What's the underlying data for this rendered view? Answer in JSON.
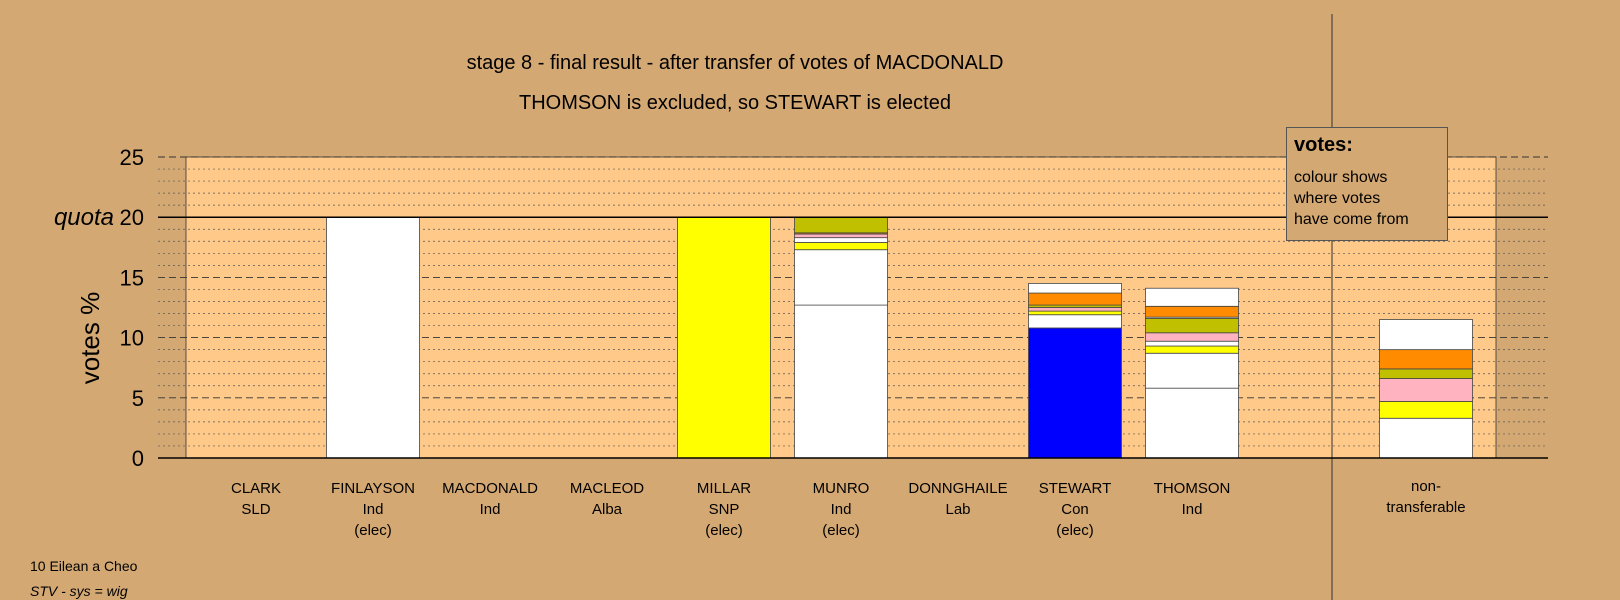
{
  "chart_data": {
    "type": "bar",
    "stacked": true,
    "title": "stage 8 - final result - after transfer of votes of MACDONALD",
    "subtitle": "THOMSON is excluded, so STEWART is elected",
    "ylabel": "votes %",
    "ylim": [
      0,
      25
    ],
    "yticks": [
      "0",
      "5",
      "10",
      "15",
      "20",
      "25"
    ],
    "quota_label": "quota",
    "quota_value": 20,
    "grid": true,
    "legend": {
      "title": "votes:",
      "text": "colour shows where votes have come from"
    },
    "categories": [
      {
        "name": "CLARK",
        "party": "SLD",
        "status": "",
        "segments": []
      },
      {
        "name": "FINLAYSON",
        "party": "Ind",
        "status": "(elec)",
        "segments": [
          {
            "value": 20.0,
            "color": "#ffffff"
          }
        ]
      },
      {
        "name": "MACDONALD",
        "party": "Ind",
        "status": "",
        "segments": []
      },
      {
        "name": "MACLEOD",
        "party": "Alba",
        "status": "",
        "segments": []
      },
      {
        "name": "MILLAR",
        "party": "SNP",
        "status": "(elec)",
        "segments": [
          {
            "value": 20.0,
            "color": "#ffff00"
          }
        ]
      },
      {
        "name": "MUNRO",
        "party": "Ind",
        "status": "(elec)",
        "segments": [
          {
            "value": 12.7,
            "color": "#ffffff"
          },
          {
            "value": 4.6,
            "color": "#ffffff"
          },
          {
            "value": 0.6,
            "color": "#ffff00"
          },
          {
            "value": 0.4,
            "color": "#ffffff"
          },
          {
            "value": 0.3,
            "color": "#ffb3c1"
          },
          {
            "value": 0.1,
            "color": "#ff8c00"
          },
          {
            "value": 1.3,
            "color": "#c0c000"
          }
        ]
      },
      {
        "name": "DONNGHAILE",
        "party": "Lab",
        "status": "",
        "segments": []
      },
      {
        "name": "STEWART",
        "party": "Con",
        "status": "(elec)",
        "segments": [
          {
            "value": 10.8,
            "color": "#0000ff"
          },
          {
            "value": 1.1,
            "color": "#ffffff"
          },
          {
            "value": 0.3,
            "color": "#ffff00"
          },
          {
            "value": 0.3,
            "color": "#ffb3c1"
          },
          {
            "value": 0.2,
            "color": "#c0c000"
          },
          {
            "value": 1.0,
            "color": "#ff8c00"
          },
          {
            "value": 0.8,
            "color": "#ffffff"
          }
        ]
      },
      {
        "name": "THOMSON",
        "party": "Ind",
        "status": "",
        "segments": [
          {
            "value": 5.8,
            "color": "#ffffff"
          },
          {
            "value": 2.9,
            "color": "#ffffff"
          },
          {
            "value": 0.6,
            "color": "#ffff00"
          },
          {
            "value": 0.4,
            "color": "#ffffff"
          },
          {
            "value": 0.7,
            "color": "#ffb3c1"
          },
          {
            "value": 1.2,
            "color": "#c0c000"
          },
          {
            "value": 0.1,
            "color": "#ffffff"
          },
          {
            "value": 0.9,
            "color": "#ff8c00"
          },
          {
            "value": 1.5,
            "color": "#ffffff"
          }
        ]
      },
      {
        "name": "non-",
        "party": "transferable",
        "status": "",
        "segments": [
          {
            "value": 3.3,
            "color": "#ffffff"
          },
          {
            "value": 1.4,
            "color": "#ffff00"
          },
          {
            "value": 1.9,
            "color": "#ffb3c1"
          },
          {
            "value": 0.8,
            "color": "#c0c000"
          },
          {
            "value": 1.6,
            "color": "#ff8c00"
          },
          {
            "value": 2.5,
            "color": "#ffffff"
          }
        ]
      }
    ]
  },
  "footer": {
    "line1": "10 Eilean a Cheo",
    "line2": "STV - sys = wig"
  },
  "colors": {
    "background": "#d4a873",
    "plot_area": "#ffc98a"
  }
}
